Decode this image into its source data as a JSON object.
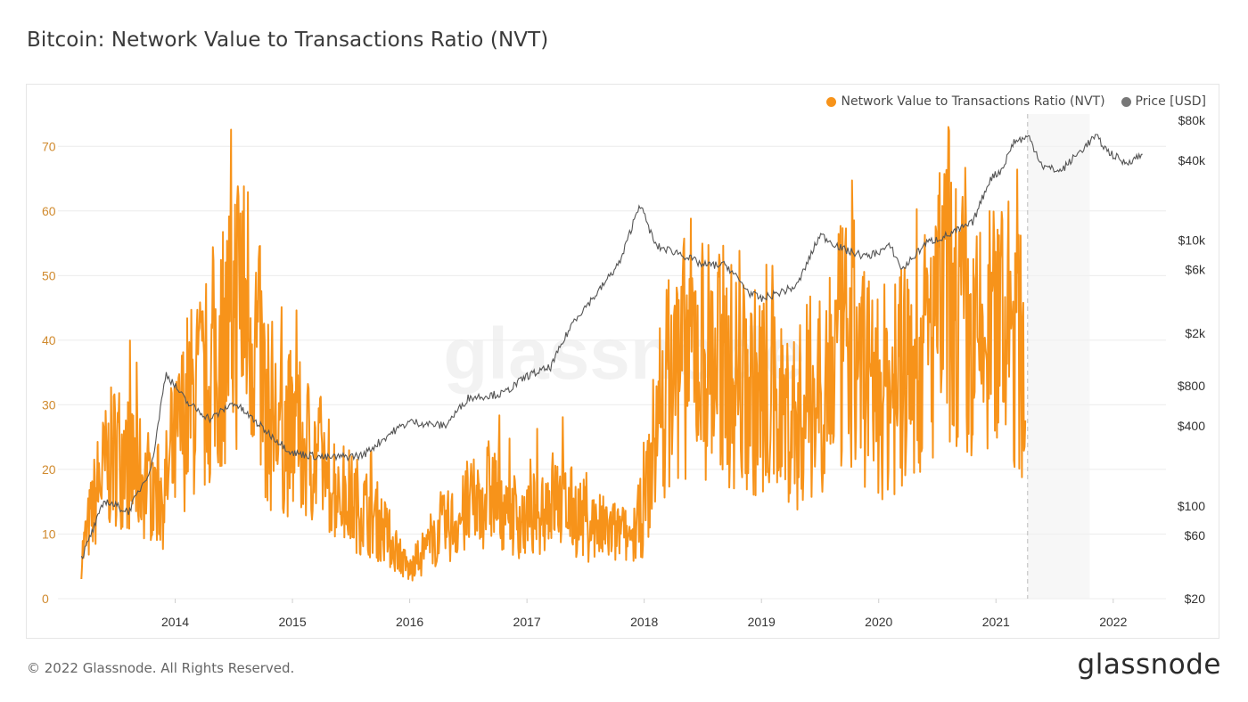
{
  "title": "Bitcoin: Network Value to Transactions Ratio (NVT)",
  "footer": "© 2022 Glassnode. All Rights Reserved.",
  "brand": "glassnode",
  "watermark": "glassnode",
  "colors": {
    "nvt": "#F7931A",
    "price": "#555555",
    "axis_left": "#D08A2E",
    "grid": "#ececec"
  },
  "chart_data": {
    "type": "line",
    "legend_position": "top-right",
    "grid": true,
    "x_ticks": [
      "2014",
      "2015",
      "2016",
      "2017",
      "2018",
      "2019",
      "2020",
      "2021",
      "2022"
    ],
    "y_left": {
      "range": [
        0,
        75
      ],
      "ticks": [
        "0",
        "10",
        "20",
        "30",
        "40",
        "50",
        "60",
        "70"
      ]
    },
    "y_right": {
      "scale": "log",
      "range": [
        20,
        80000
      ],
      "ticks": [
        {
          "value": 20,
          "label": "$20"
        },
        {
          "value": 60,
          "label": "$60"
        },
        {
          "value": 100,
          "label": "$100"
        },
        {
          "value": 400,
          "label": "$400"
        },
        {
          "value": 800,
          "label": "$800"
        },
        {
          "value": 2000,
          "label": "$2k"
        },
        {
          "value": 6000,
          "label": "$6k"
        },
        {
          "value": 10000,
          "label": "$10k"
        },
        {
          "value": 40000,
          "label": "$40k"
        },
        {
          "value": 80000,
          "label": "$80k"
        }
      ]
    },
    "series": [
      {
        "name": "Network Value to Transactions Ratio (NVT)",
        "axis": "left",
        "x": [
          2013.2,
          2013.35,
          2013.5,
          2013.7,
          2013.9,
          2014.1,
          2014.3,
          2014.45,
          2014.55,
          2014.65,
          2014.8,
          2015.0,
          2015.2,
          2015.45,
          2015.7,
          2015.9,
          2016.0,
          2016.2,
          2016.45,
          2016.7,
          2016.85,
          2017.0,
          2017.2,
          2017.45,
          2017.65,
          2017.9,
          2018.0,
          2018.15,
          2018.4,
          2018.6,
          2018.85,
          2019.0,
          2019.3,
          2019.55,
          2019.75,
          2020.0,
          2020.2,
          2020.45,
          2020.6,
          2020.8,
          2021.0,
          2021.15,
          2021.25
        ],
        "values": [
          6,
          17,
          22,
          18,
          15,
          28,
          32,
          40,
          45,
          42,
          26,
          24,
          21,
          15,
          12,
          7,
          4,
          9,
          12,
          16,
          13,
          11,
          15,
          12,
          10,
          9,
          13,
          30,
          37,
          35,
          31,
          30,
          26,
          33,
          38,
          30,
          32,
          38,
          46,
          35,
          40,
          38,
          34
        ]
      },
      {
        "name": "Price [USD]",
        "axis": "right",
        "x": [
          2013.2,
          2013.4,
          2013.6,
          2013.8,
          2013.92,
          2014.1,
          2014.3,
          2014.5,
          2014.8,
          2015.0,
          2015.3,
          2015.6,
          2015.85,
          2016.0,
          2016.3,
          2016.5,
          2016.8,
          2017.0,
          2017.2,
          2017.4,
          2017.6,
          2017.8,
          2017.96,
          2018.1,
          2018.3,
          2018.5,
          2018.7,
          2018.9,
          2019.0,
          2019.3,
          2019.5,
          2019.7,
          2019.9,
          2020.1,
          2020.2,
          2020.4,
          2020.6,
          2020.8,
          2020.95,
          2021.05,
          2021.15,
          2021.28,
          2021.4,
          2021.55,
          2021.7,
          2021.85,
          2021.95,
          2022.1,
          2022.25
        ],
        "values": [
          40,
          110,
          90,
          200,
          1000,
          600,
          450,
          600,
          350,
          250,
          230,
          240,
          360,
          430,
          400,
          650,
          700,
          950,
          1100,
          2500,
          4000,
          7000,
          19000,
          9000,
          8000,
          6500,
          6500,
          4000,
          3600,
          4500,
          11000,
          8500,
          7500,
          9000,
          6000,
          9500,
          11000,
          13500,
          29000,
          34000,
          55000,
          60000,
          36000,
          33000,
          45000,
          61000,
          47000,
          38000,
          44000
        ]
      }
    ]
  }
}
